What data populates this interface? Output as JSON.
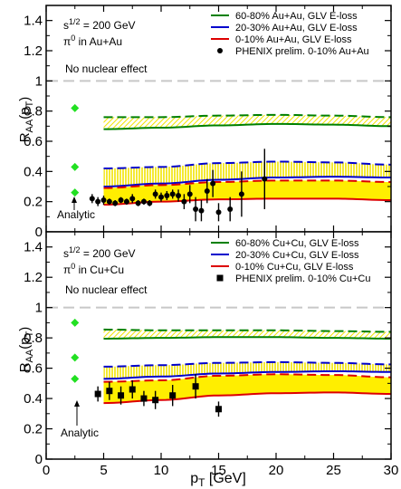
{
  "chart_data": [
    {
      "type": "line",
      "panel": "top",
      "ylabel": "R_AA(p_T)",
      "xlim": [
        0,
        30
      ],
      "ylim": [
        0,
        1.5
      ],
      "xticks": [
        0,
        5,
        10,
        15,
        20,
        25,
        30
      ],
      "yticks": [
        0,
        0.2,
        0.4,
        0.6,
        0.8,
        1,
        1.2,
        1.4
      ],
      "xtick_labels": [
        "",
        "",
        "",
        "",
        "",
        "",
        ""
      ],
      "ytick_labels": [
        "0",
        "0.2",
        "0.4",
        "0.6",
        "0.8",
        "1",
        "1.2",
        "1.4"
      ],
      "annotation_energy": "s^{1/2} = 200 GeV",
      "annotation_system": "π^0 in Au+Au",
      "no_effect_label": "No nuclear effect",
      "no_effect_value": 1.0,
      "analytic_label": "Analytic",
      "analytic_x": 2.5,
      "analytic_values": [
        0.82,
        0.43,
        0.26
      ],
      "legend": [
        {
          "label": "60-80% Au+Au, GLV E-loss",
          "color": "#008000",
          "type": "line"
        },
        {
          "label": "20-30% Au+Au, GLV E-loss",
          "color": "#0000cc",
          "type": "line"
        },
        {
          "label": "0-10%  Au+Au, GLV E-loss",
          "color": "#dd0000",
          "type": "line"
        },
        {
          "label": "PHENIX prelim. 0-10% Au+Au",
          "color": "#000000",
          "type": "circle"
        }
      ],
      "bands": [
        {
          "name": "60-80%",
          "color": "#008000",
          "x": [
            5,
            10,
            15,
            20,
            25,
            30
          ],
          "lower": [
            0.68,
            0.69,
            0.705,
            0.715,
            0.71,
            0.7
          ],
          "upper": [
            0.76,
            0.76,
            0.77,
            0.775,
            0.77,
            0.76
          ]
        },
        {
          "name": "20-30%",
          "color": "#0000cc",
          "x": [
            5,
            10,
            15,
            20,
            25,
            30
          ],
          "lower": [
            0.3,
            0.32,
            0.345,
            0.36,
            0.365,
            0.36
          ],
          "upper": [
            0.42,
            0.43,
            0.455,
            0.465,
            0.46,
            0.445
          ]
        },
        {
          "name": "0-10%",
          "color": "#dd0000",
          "x": [
            5,
            10,
            15,
            20,
            25,
            30
          ],
          "lower": [
            0.18,
            0.2,
            0.215,
            0.22,
            0.22,
            0.21
          ],
          "upper": [
            0.29,
            0.31,
            0.33,
            0.34,
            0.34,
            0.33
          ]
        }
      ],
      "data": {
        "marker": "circle",
        "x": [
          4.0,
          4.5,
          5.0,
          5.5,
          6.0,
          6.5,
          7.0,
          7.5,
          8.0,
          8.5,
          9.0,
          9.5,
          10.0,
          10.5,
          11.0,
          11.5,
          12.0,
          12.5,
          13.0,
          13.5,
          14.0,
          14.5,
          15.0,
          16.0,
          17.0,
          19.0
        ],
        "y": [
          0.22,
          0.2,
          0.21,
          0.2,
          0.19,
          0.21,
          0.2,
          0.22,
          0.19,
          0.2,
          0.19,
          0.25,
          0.23,
          0.24,
          0.25,
          0.24,
          0.2,
          0.25,
          0.15,
          0.14,
          0.27,
          0.32,
          0.13,
          0.15,
          0.25,
          0.35
        ],
        "err": [
          0.03,
          0.03,
          0.03,
          0.02,
          0.02,
          0.02,
          0.02,
          0.03,
          0.02,
          0.02,
          0.02,
          0.03,
          0.03,
          0.03,
          0.03,
          0.04,
          0.05,
          0.06,
          0.08,
          0.07,
          0.08,
          0.09,
          0.06,
          0.08,
          0.15,
          0.2
        ]
      }
    },
    {
      "type": "line",
      "panel": "bottom",
      "xlabel": "p_T [GeV]",
      "ylabel": "R_AA(p_T)",
      "xlim": [
        0,
        30
      ],
      "ylim": [
        0,
        1.5
      ],
      "xticks": [
        0,
        5,
        10,
        15,
        20,
        25,
        30
      ],
      "yticks": [
        0,
        0.2,
        0.4,
        0.6,
        0.8,
        1,
        1.2,
        1.4
      ],
      "xtick_labels": [
        "0",
        "5",
        "10",
        "15",
        "20",
        "25",
        "30"
      ],
      "ytick_labels": [
        "0",
        "0.2",
        "0.4",
        "0.6",
        "0.8",
        "1",
        "1.2",
        "1.4"
      ],
      "annotation_energy": "s^{1/2} = 200 GeV",
      "annotation_system": "π^0 in Cu+Cu",
      "no_effect_label": "No nuclear effect",
      "no_effect_value": 1.0,
      "analytic_label": "Analytic",
      "analytic_x": 2.5,
      "analytic_values": [
        0.9,
        0.67,
        0.53
      ],
      "legend": [
        {
          "label": "60-80% Cu+Cu, GLV E-loss",
          "color": "#008000",
          "type": "line"
        },
        {
          "label": "20-30% Cu+Cu, GLV E-loss",
          "color": "#0000cc",
          "type": "line"
        },
        {
          "label": "0-10%  Cu+Cu, GLV E-loss",
          "color": "#dd0000",
          "type": "line"
        },
        {
          "label": "PHENIX prelim. 0-10% Cu+Cu",
          "color": "#000000",
          "type": "square"
        }
      ],
      "bands": [
        {
          "name": "60-80%",
          "color": "#008000",
          "x": [
            5,
            10,
            15,
            20,
            25,
            30
          ],
          "lower": [
            0.795,
            0.8,
            0.805,
            0.805,
            0.8,
            0.795
          ],
          "upper": [
            0.855,
            0.85,
            0.85,
            0.85,
            0.845,
            0.84
          ]
        },
        {
          "name": "20-30%",
          "color": "#0000cc",
          "x": [
            5,
            10,
            15,
            20,
            25,
            30
          ],
          "lower": [
            0.53,
            0.545,
            0.565,
            0.575,
            0.58,
            0.575
          ],
          "upper": [
            0.61,
            0.62,
            0.635,
            0.64,
            0.635,
            0.625
          ]
        },
        {
          "name": "0-10%",
          "color": "#dd0000",
          "x": [
            5,
            10,
            15,
            20,
            25,
            30
          ],
          "lower": [
            0.37,
            0.39,
            0.42,
            0.435,
            0.44,
            0.43
          ],
          "upper": [
            0.51,
            0.52,
            0.55,
            0.56,
            0.555,
            0.54
          ]
        }
      ],
      "data": {
        "marker": "square",
        "x": [
          4.5,
          5.5,
          6.5,
          7.5,
          8.5,
          9.5,
          11.0,
          13.0,
          15.0
        ],
        "y": [
          0.43,
          0.45,
          0.42,
          0.46,
          0.4,
          0.39,
          0.42,
          0.48,
          0.33
        ],
        "err": [
          0.05,
          0.06,
          0.06,
          0.06,
          0.05,
          0.06,
          0.07,
          0.08,
          0.05
        ]
      }
    }
  ]
}
